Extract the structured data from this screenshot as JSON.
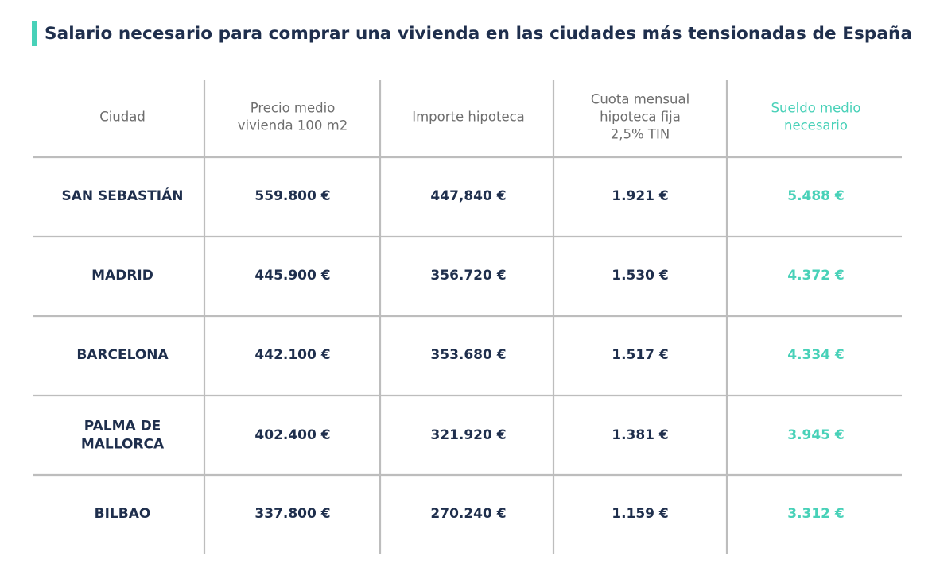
{
  "title": "Salario necesario para comprar una vivienda en las ciudades más tensionadas de España",
  "colors": {
    "accent": "#48d1b8",
    "dark_text": "#1f2f4d",
    "header_text": "#6e6e6e",
    "grid": "#bdbdbd"
  },
  "chart_data": {
    "type": "table",
    "columns": [
      [
        "Ciudad"
      ],
      [
        "Precio medio",
        "vivienda 100 m2"
      ],
      [
        "Importe hipoteca"
      ],
      [
        "Cuota mensual",
        "hipoteca fija",
        "2,5% TIN"
      ],
      [
        "Sueldo medio",
        "necesario"
      ]
    ],
    "rows": [
      {
        "city": [
          "SAN SEBASTIÁN"
        ],
        "price": "559.800 €",
        "mortgage": "447,840 €",
        "monthly": "1.921 €",
        "salary": "5.488 €"
      },
      {
        "city": [
          "MADRID"
        ],
        "price": "445.900 €",
        "mortgage": "356.720 €",
        "monthly": "1.530 €",
        "salary": "4.372 €"
      },
      {
        "city": [
          "BARCELONA"
        ],
        "price": "442.100 €",
        "mortgage": "353.680 €",
        "monthly": "1.517 €",
        "salary": "4.334 €"
      },
      {
        "city": [
          "PALMA DE",
          "MALLORCA"
        ],
        "price": "402.400 €",
        "mortgage": "321.920 €",
        "monthly": "1.381 €",
        "salary": "3.945 €"
      },
      {
        "city": [
          "BILBAO"
        ],
        "price": "337.800 €",
        "mortgage": "270.240 €",
        "monthly": "1.159 €",
        "salary": "3.312 €"
      }
    ]
  }
}
